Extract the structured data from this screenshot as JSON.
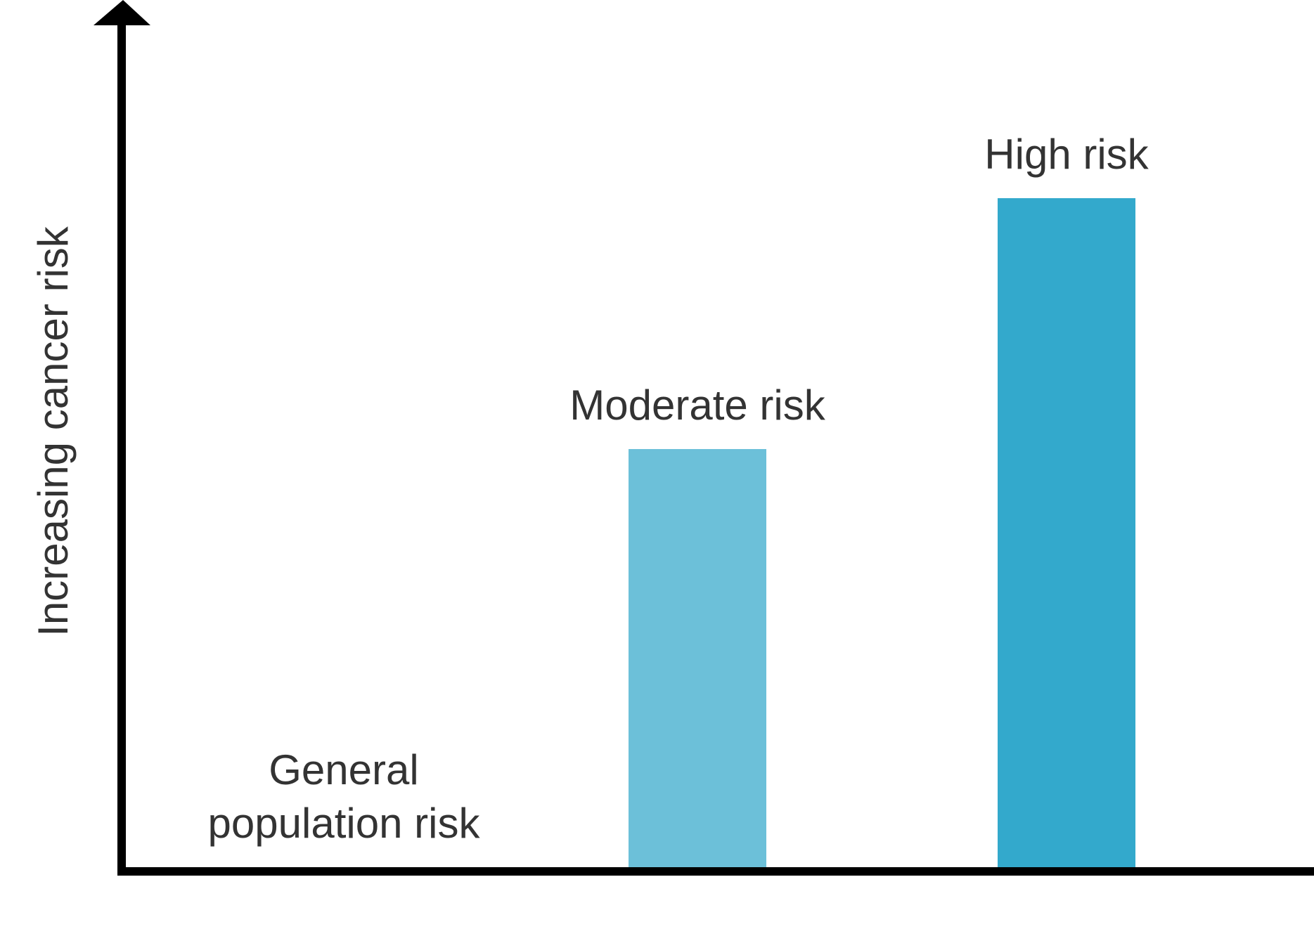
{
  "chart_data": {
    "type": "bar",
    "title": "",
    "xlabel": "",
    "ylabel": "Increasing cancer risk",
    "categories": [
      "General\npopulation risk",
      "Moderate risk",
      "High risk"
    ],
    "values": [
      0,
      50,
      80
    ],
    "ylim": [
      0,
      100
    ],
    "grid": false,
    "colors": [
      "#6cc0d9",
      "#6cc0d9",
      "#33a9cc"
    ],
    "axis_color": "#000000",
    "text_color": "#333333"
  }
}
